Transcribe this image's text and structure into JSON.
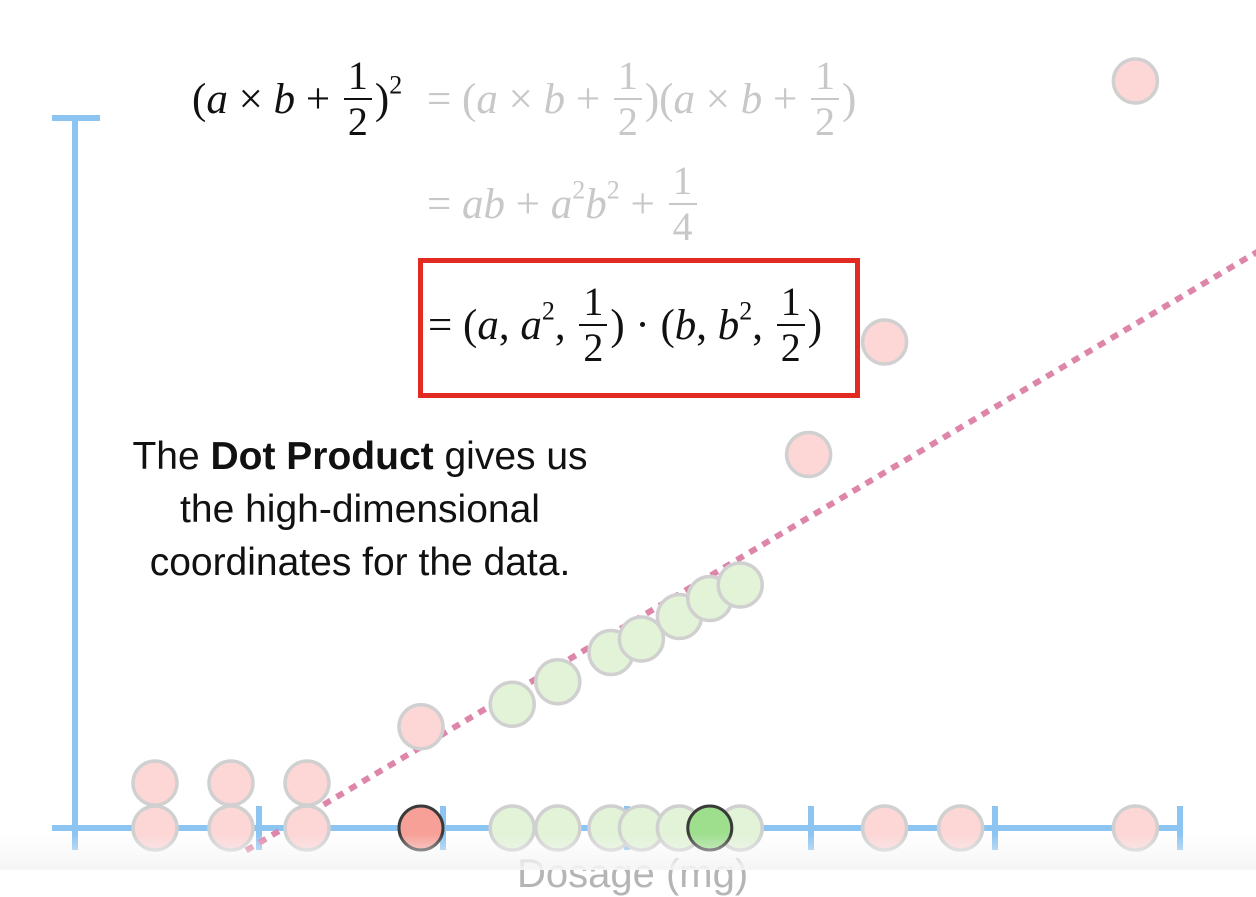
{
  "equation": {
    "line1_lhs": "(a × b + 1/2)²",
    "line1_rhs": "= (a × b + 1/2)(a × b + 1/2)",
    "line2": "= ab + a²b² + 1/4",
    "line3_boxed": "= (a, a², 1/2) · (b, b², 1/2)",
    "one": "1",
    "two": "2",
    "four": "4"
  },
  "caption": {
    "before": "The ",
    "bold": "Dot Product",
    "after": " gives us the high-dimensional coordinates for the data."
  },
  "colors": {
    "axis": "#8cc4f2",
    "red_fill": "#fdd6d6",
    "red_strong": "#f7a098",
    "green_fill": "#e2f3d8",
    "green_strong": "#9edf8e",
    "dotted_line": "#de86aa",
    "box": "#e02a22"
  },
  "chart_data": {
    "type": "scatter",
    "xlabel": "Dosage (mg)",
    "x_ticks": 6,
    "series": [
      {
        "class": "red",
        "points": [
          [
            0,
            0
          ],
          [
            0,
            1
          ],
          [
            1,
            0
          ],
          [
            1,
            1
          ],
          [
            2,
            0
          ],
          [
            2,
            1
          ],
          [
            3.5,
            2.25
          ],
          [
            8.6,
            8.3
          ],
          [
            9.6,
            10.8
          ],
          [
            9.6,
            0
          ],
          [
            10.6,
            0
          ],
          [
            12.9,
            16.6
          ],
          [
            12.9,
            0
          ]
        ]
      },
      {
        "class": "green",
        "points": [
          [
            4.7,
            2.75
          ],
          [
            5.3,
            3.25
          ],
          [
            6.0,
            3.9
          ],
          [
            6.4,
            4.2
          ],
          [
            6.9,
            4.7
          ],
          [
            7.3,
            5.1
          ],
          [
            7.7,
            5.4
          ],
          [
            4.7,
            0
          ],
          [
            5.3,
            0
          ],
          [
            6.0,
            0
          ],
          [
            6.4,
            0
          ],
          [
            6.9,
            0
          ],
          [
            7.7,
            0
          ]
        ]
      },
      {
        "class": "red_highlight",
        "points": [
          [
            3.5,
            0
          ]
        ]
      },
      {
        "class": "green_highlight",
        "points": [
          [
            7.3,
            0
          ]
        ]
      }
    ],
    "boundary_line": {
      "x0": 1.2,
      "y0": -0.5,
      "x1": 15.2,
      "y1": 13.5
    }
  }
}
